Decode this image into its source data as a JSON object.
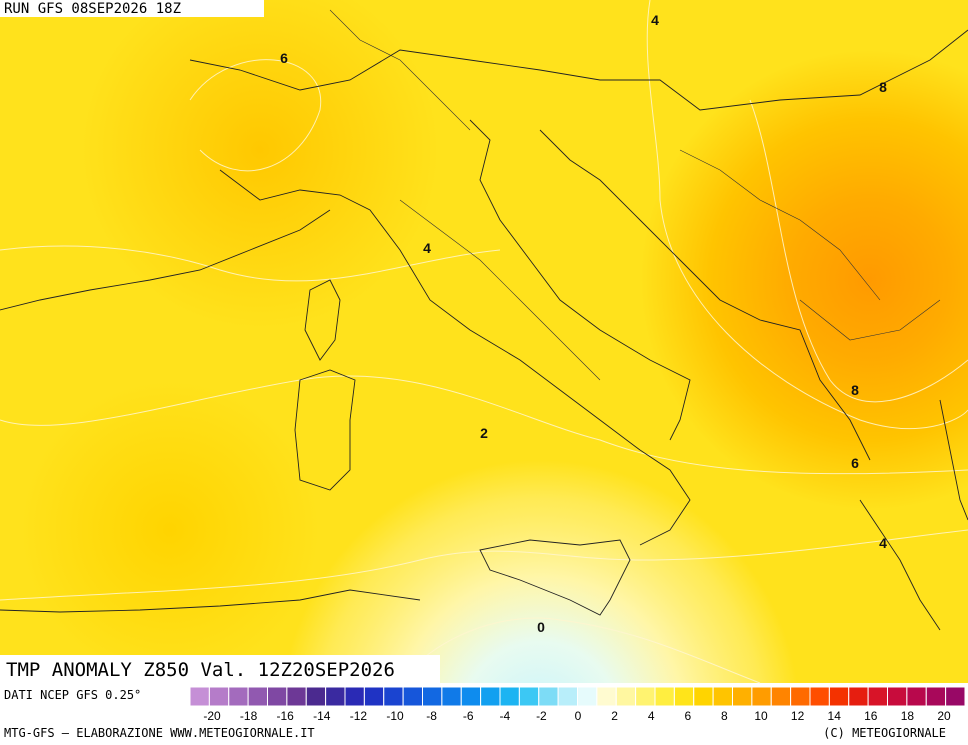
{
  "header": {
    "run": "RUN GFS 08SEP2026 18Z"
  },
  "map": {
    "title": "TMP ANOMALY Z850 Val. 12Z20SEP2026",
    "contour_labels": [
      4,
      6,
      8,
      4,
      8,
      2,
      6,
      4,
      0
    ]
  },
  "source": "DATI NCEP GFS 0.25°",
  "colorbar": {
    "colors": [
      "#c58fd6",
      "#b57cc9",
      "#a36bbd",
      "#9159b0",
      "#7f48a3",
      "#6d3896",
      "#4b2a8f",
      "#3a2aa0",
      "#2a2ab5",
      "#1f33c4",
      "#1a44d0",
      "#1656da",
      "#1268e2",
      "#107ae8",
      "#0e8cee",
      "#12a0f0",
      "#1cb4f2",
      "#3cc8f4",
      "#7ddcf6",
      "#b8eefa",
      "#e6fbfc",
      "#fffbd0",
      "#fff7a0",
      "#fff370",
      "#ffee40",
      "#ffe41a",
      "#ffd400",
      "#ffc400",
      "#ffb000",
      "#ff9c00",
      "#ff8400",
      "#ff6a00",
      "#ff4e00",
      "#f43200",
      "#e61e10",
      "#d81428",
      "#c80c3c",
      "#b8084c",
      "#a8085a",
      "#980866"
    ],
    "ticks": [
      -20,
      -18,
      -16,
      -14,
      -12,
      -10,
      -8,
      -6,
      -4,
      -2,
      0,
      2,
      4,
      6,
      8,
      10,
      12,
      14,
      16,
      18,
      20
    ]
  },
  "footer": {
    "left": "MTG-GFS — ELABORAZIONE WWW.METEOGIORNALE.IT",
    "right": "(C) METEOGIORNALE"
  }
}
